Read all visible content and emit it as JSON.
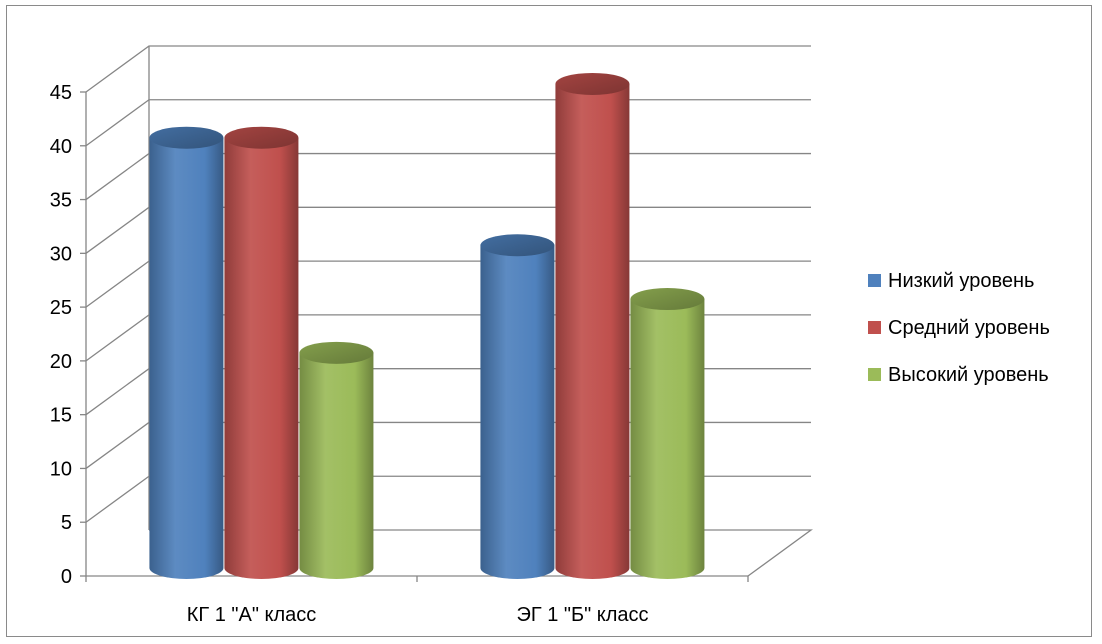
{
  "chart_data": {
    "type": "bar",
    "style": "3d-cylinder",
    "categories": [
      "КГ  1 \"А\" класс",
      "ЭГ  1 \"Б\" класс"
    ],
    "series": [
      {
        "name": "Низкий уровень",
        "color": "#4f81bd",
        "values": [
          40,
          30
        ]
      },
      {
        "name": "Средний уровень",
        "color": "#c0504d",
        "values": [
          40,
          45
        ]
      },
      {
        "name": "Высокий уровень",
        "color": "#9bbb59",
        "values": [
          20,
          25
        ]
      }
    ],
    "ylim": [
      0,
      45
    ],
    "yticks": [
      0,
      5,
      10,
      15,
      20,
      25,
      30,
      35,
      40,
      45
    ],
    "grid": true,
    "legend": "right"
  }
}
